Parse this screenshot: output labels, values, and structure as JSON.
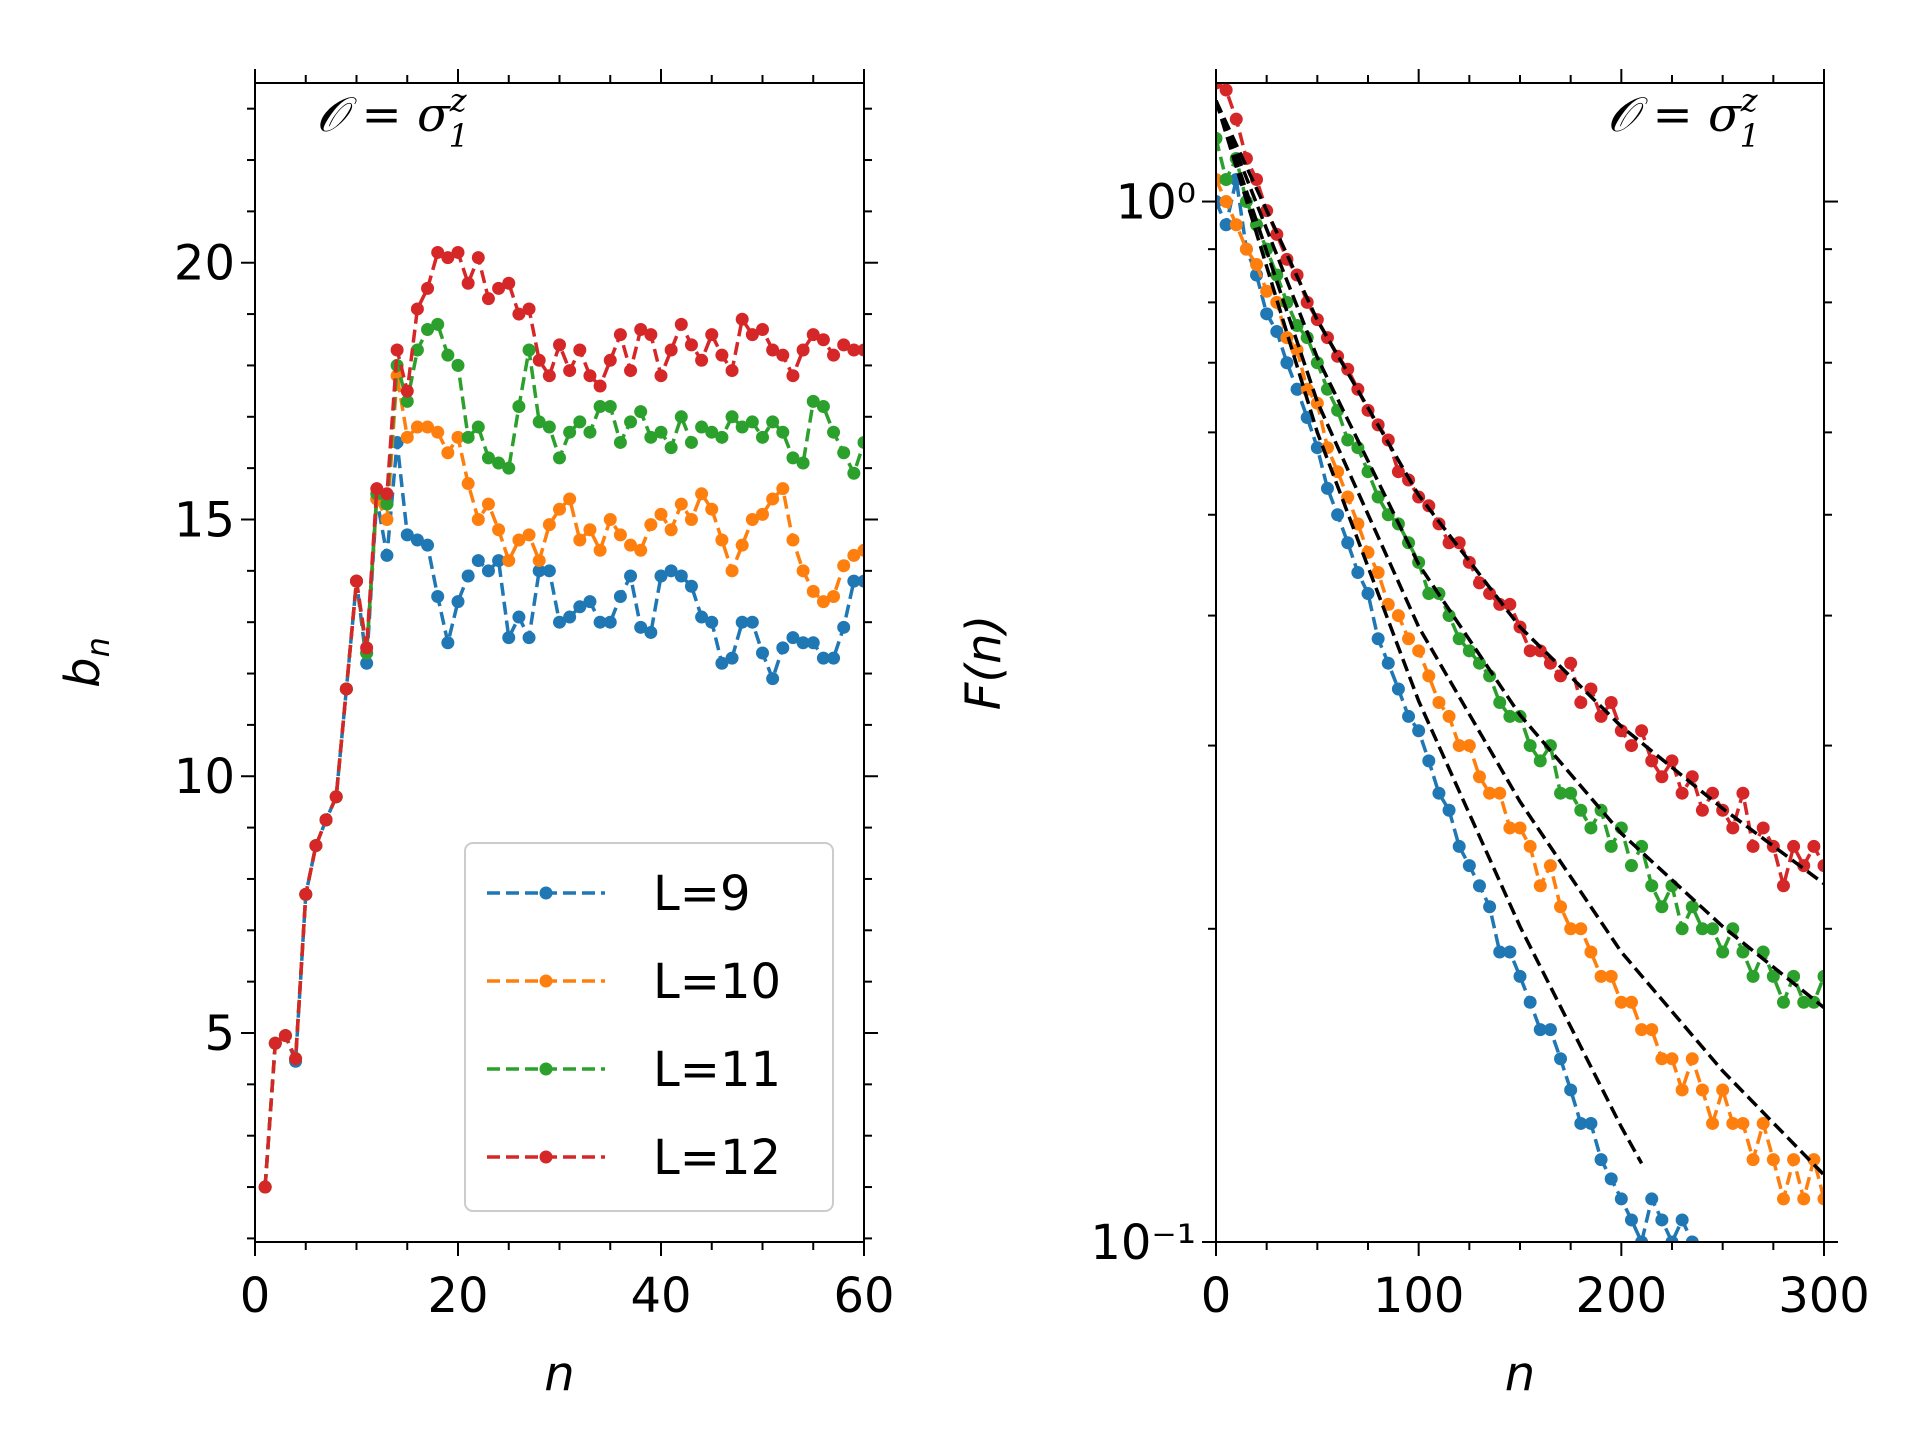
{
  "chart_data": [
    {
      "type": "line",
      "annotation": {
        "text": "𝒪 = σ",
        "subscript": "1",
        "superscript": "z"
      },
      "xlabel": "n",
      "ylabel": {
        "text": "b",
        "subscript": "n"
      },
      "xlim": [
        0,
        60
      ],
      "xticks": [
        0,
        20,
        40,
        60
      ],
      "xminorticks": [
        5,
        10,
        15,
        25,
        30,
        35,
        45,
        50,
        55
      ],
      "ylim": [
        0.93,
        23.5
      ],
      "yticks": [
        5,
        10,
        15,
        20
      ],
      "yminorticks": [
        1,
        2,
        3,
        4,
        6,
        7,
        8,
        9,
        11,
        12,
        13,
        14,
        16,
        17,
        18,
        19,
        21,
        22,
        23
      ],
      "log_scale": false,
      "legend": "lower right",
      "x": [
        1,
        2,
        3,
        4,
        5,
        6,
        7,
        8,
        9,
        10,
        11,
        12,
        13,
        14,
        15,
        16,
        17,
        18,
        19,
        20,
        21,
        22,
        23,
        24,
        25,
        26,
        27,
        28,
        29,
        30,
        31,
        32,
        33,
        34,
        35,
        36,
        37,
        38,
        39,
        40,
        41,
        42,
        43,
        44,
        45,
        46,
        47,
        48,
        49,
        50,
        51,
        52,
        53,
        54,
        55,
        56,
        57,
        58,
        59,
        60
      ],
      "series": [
        {
          "name": "L=9",
          "color": "#1f77b4",
          "values": [
            2.0,
            4.8,
            4.95,
            4.45,
            7.7,
            8.65,
            9.15,
            9.6,
            11.7,
            13.8,
            12.2,
            15.4,
            14.3,
            16.5,
            14.7,
            14.6,
            14.5,
            13.5,
            12.6,
            13.4,
            13.9,
            14.2,
            14.0,
            14.2,
            12.7,
            13.1,
            12.7,
            14.0,
            14.0,
            13.0,
            13.1,
            13.3,
            13.4,
            13.0,
            13.0,
            13.5,
            13.9,
            12.9,
            12.8,
            13.9,
            14.0,
            13.9,
            13.7,
            13.1,
            13.0,
            12.2,
            12.3,
            13.0,
            13.0,
            12.4,
            11.9,
            12.5,
            12.7,
            12.6,
            12.6,
            12.3,
            12.3,
            12.9,
            13.8,
            13.8
          ]
        },
        {
          "name": "L=10",
          "color": "#ff7f0e",
          "values": [
            2.0,
            4.8,
            4.95,
            4.5,
            7.7,
            8.65,
            9.15,
            9.6,
            11.7,
            13.8,
            12.4,
            15.4,
            15.0,
            17.8,
            16.6,
            16.8,
            16.8,
            16.7,
            16.3,
            16.6,
            15.7,
            15.0,
            15.3,
            14.8,
            14.2,
            14.6,
            14.7,
            14.2,
            14.9,
            15.2,
            15.4,
            14.6,
            14.8,
            14.4,
            15.0,
            14.7,
            14.5,
            14.4,
            14.9,
            15.1,
            14.8,
            15.3,
            15.0,
            15.5,
            15.2,
            14.6,
            14.0,
            14.5,
            15.0,
            15.1,
            15.4,
            15.6,
            14.6,
            14.0,
            13.6,
            13.4,
            13.5,
            14.1,
            14.3,
            14.4
          ]
        },
        {
          "name": "L=11",
          "color": "#2ca02c",
          "values": [
            2.0,
            4.8,
            4.95,
            4.5,
            7.7,
            8.65,
            9.15,
            9.6,
            11.7,
            13.8,
            12.4,
            15.5,
            15.3,
            18.0,
            17.3,
            18.3,
            18.7,
            18.8,
            18.2,
            18.0,
            16.6,
            16.8,
            16.2,
            16.1,
            16.0,
            17.2,
            18.3,
            16.9,
            16.8,
            16.2,
            16.7,
            16.9,
            16.7,
            17.2,
            17.2,
            16.5,
            16.9,
            17.1,
            16.6,
            16.7,
            16.4,
            17.0,
            16.5,
            16.8,
            16.7,
            16.6,
            17.0,
            16.8,
            16.9,
            16.6,
            16.9,
            16.7,
            16.2,
            16.1,
            17.3,
            17.2,
            16.7,
            16.3,
            15.9,
            16.5
          ]
        },
        {
          "name": "L=12",
          "color": "#d62728",
          "values": [
            2.0,
            4.8,
            4.95,
            4.5,
            7.7,
            8.65,
            9.15,
            9.6,
            11.7,
            13.8,
            12.5,
            15.6,
            15.5,
            18.3,
            17.5,
            19.1,
            19.5,
            20.2,
            20.1,
            20.2,
            19.6,
            20.1,
            19.3,
            19.5,
            19.6,
            19.0,
            19.1,
            18.1,
            17.8,
            18.4,
            17.9,
            18.3,
            17.8,
            17.6,
            18.1,
            18.6,
            17.9,
            18.7,
            18.6,
            17.8,
            18.3,
            18.8,
            18.4,
            18.1,
            18.6,
            18.2,
            17.9,
            18.9,
            18.6,
            18.7,
            18.3,
            18.2,
            17.8,
            18.3,
            18.6,
            18.5,
            18.2,
            18.4,
            18.3,
            18.3
          ]
        }
      ]
    },
    {
      "type": "line",
      "annotation": {
        "text": "𝒪 = σ",
        "subscript": "1",
        "superscript": "z"
      },
      "xlabel": "n",
      "ylabel": {
        "text": "F(n)"
      },
      "xlim": [
        0,
        300
      ],
      "xticks": [
        0,
        100,
        200,
        300
      ],
      "xminorticks": [
        25,
        50,
        75,
        125,
        150,
        175,
        225,
        250,
        275
      ],
      "ylim": [
        0.1,
        1.3
      ],
      "yticks": [
        {
          "value": 0.1,
          "label": "10⁻¹"
        },
        {
          "value": 1,
          "label": "10⁰"
        }
      ],
      "yminorticks": [
        0.2,
        0.3,
        0.4,
        0.5,
        0.6,
        0.7,
        0.8,
        0.9
      ],
      "log_scale": true,
      "x": [
        0,
        5,
        10,
        15,
        20,
        25,
        30,
        35,
        40,
        45,
        50,
        55,
        60,
        65,
        70,
        75,
        80,
        85,
        90,
        95,
        100,
        105,
        110,
        115,
        120,
        125,
        130,
        135,
        140,
        145,
        150,
        155,
        160,
        165,
        170,
        175,
        180,
        185,
        190,
        195,
        200,
        205,
        210,
        215,
        220,
        225,
        230,
        235,
        240,
        245,
        250,
        255,
        260,
        265,
        270,
        275,
        280,
        285,
        290,
        295,
        300
      ],
      "series": [
        {
          "color": "#1f77b4",
          "marker": true,
          "x": [
            0,
            5,
            10,
            15,
            20,
            25,
            30,
            35,
            40,
            45,
            50,
            55,
            60,
            65,
            70,
            75,
            80,
            85,
            90,
            95,
            100,
            105,
            110,
            115,
            120,
            125,
            130,
            135,
            140,
            145,
            150,
            155,
            160,
            165,
            170,
            175,
            180,
            185,
            190,
            195,
            200,
            205,
            210,
            215,
            220,
            225,
            230,
            235
          ],
          "values": [
            1.0,
            0.95,
            1.05,
            0.9,
            0.85,
            0.78,
            0.75,
            0.7,
            0.66,
            0.62,
            0.58,
            0.53,
            0.5,
            0.47,
            0.44,
            0.42,
            0.38,
            0.36,
            0.34,
            0.32,
            0.31,
            0.29,
            0.27,
            0.26,
            0.24,
            0.23,
            0.22,
            0.21,
            0.19,
            0.19,
            0.18,
            0.17,
            0.16,
            0.16,
            0.15,
            0.14,
            0.13,
            0.13,
            0.12,
            0.115,
            0.11,
            0.105,
            0.1,
            0.11,
            0.105,
            0.1,
            0.105,
            0.1
          ]
        },
        {
          "color": "#ff7f0e",
          "marker": true,
          "values": [
            1.05,
            1.0,
            0.95,
            0.9,
            0.87,
            0.82,
            0.8,
            0.74,
            0.72,
            0.66,
            0.64,
            0.58,
            0.55,
            0.52,
            0.49,
            0.46,
            0.44,
            0.41,
            0.4,
            0.38,
            0.37,
            0.35,
            0.33,
            0.32,
            0.3,
            0.3,
            0.28,
            0.27,
            0.27,
            0.25,
            0.25,
            0.24,
            0.22,
            0.23,
            0.21,
            0.2,
            0.2,
            0.19,
            0.18,
            0.18,
            0.17,
            0.17,
            0.16,
            0.16,
            0.15,
            0.15,
            0.14,
            0.15,
            0.14,
            0.13,
            0.14,
            0.13,
            0.13,
            0.12,
            0.13,
            0.12,
            0.11,
            0.12,
            0.11,
            0.12,
            0.11
          ]
        },
        {
          "color": "#2ca02c",
          "marker": true,
          "values": [
            1.15,
            1.05,
            1.1,
            1.0,
            0.95,
            0.9,
            0.85,
            0.8,
            0.76,
            0.74,
            0.7,
            0.66,
            0.63,
            0.59,
            0.58,
            0.55,
            0.52,
            0.5,
            0.49,
            0.47,
            0.45,
            0.42,
            0.42,
            0.4,
            0.38,
            0.37,
            0.36,
            0.35,
            0.33,
            0.32,
            0.32,
            0.3,
            0.29,
            0.3,
            0.27,
            0.27,
            0.26,
            0.25,
            0.26,
            0.24,
            0.25,
            0.23,
            0.24,
            0.22,
            0.21,
            0.22,
            0.2,
            0.21,
            0.2,
            0.2,
            0.19,
            0.2,
            0.19,
            0.18,
            0.19,
            0.18,
            0.17,
            0.18,
            0.17,
            0.17,
            0.18
          ]
        },
        {
          "color": "#d62728",
          "marker": true,
          "values": [
            1.3,
            1.28,
            1.2,
            1.1,
            1.05,
            0.98,
            0.93,
            0.88,
            0.85,
            0.8,
            0.77,
            0.74,
            0.71,
            0.69,
            0.66,
            0.63,
            0.61,
            0.59,
            0.55,
            0.54,
            0.52,
            0.51,
            0.49,
            0.47,
            0.47,
            0.45,
            0.43,
            0.42,
            0.41,
            0.41,
            0.39,
            0.37,
            0.37,
            0.36,
            0.35,
            0.36,
            0.33,
            0.34,
            0.32,
            0.33,
            0.31,
            0.3,
            0.31,
            0.29,
            0.28,
            0.29,
            0.27,
            0.28,
            0.26,
            0.27,
            0.26,
            0.25,
            0.27,
            0.24,
            0.25,
            0.24,
            0.22,
            0.24,
            0.23,
            0.24,
            0.23
          ]
        },
        {
          "color": "#000000",
          "marker": false,
          "x": [
            0,
            50,
            100,
            150,
            200,
            210
          ],
          "values": [
            1.25,
            0.6,
            0.331,
            0.201,
            0.129,
            0.119
          ]
        },
        {
          "color": "#000000",
          "marker": false,
          "x": [
            0,
            50,
            100,
            150,
            200,
            250,
            300
          ],
          "values": [
            1.25,
            0.642,
            0.39,
            0.265,
            0.19,
            0.146,
            0.116
          ]
        },
        {
          "color": "#000000",
          "marker": false,
          "x": [
            0,
            50,
            100,
            150,
            200,
            250,
            300
          ],
          "values": [
            1.25,
            0.708,
            0.448,
            0.321,
            0.247,
            0.201,
            0.168
          ]
        },
        {
          "color": "#000000",
          "marker": false,
          "x": [
            0,
            50,
            100,
            150,
            200,
            250,
            300
          ],
          "values": [
            1.25,
            0.769,
            0.522,
            0.39,
            0.313,
            0.261,
            0.221
          ]
        }
      ]
    }
  ]
}
